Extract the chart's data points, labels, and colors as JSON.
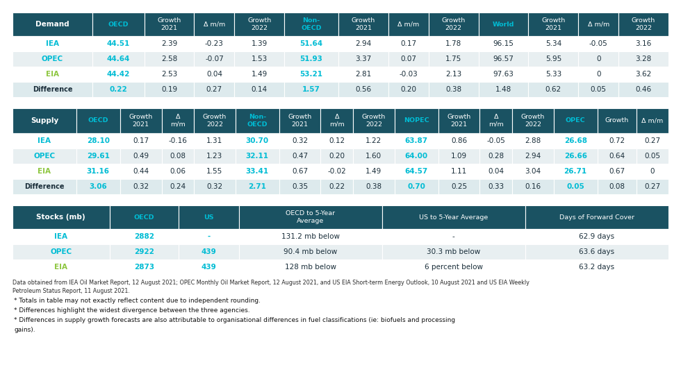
{
  "dark_teal": "#1a5262",
  "cyan_text": "#00bcd4",
  "green_text": "#8dc63f",
  "white": "#ffffff",
  "light_gray_row": "#e8eff1",
  "diff_row_bg": "#ddeaed",
  "dark_text": "#1a2e3a",
  "demand_headers": [
    "Demand",
    "OECD",
    "Growth\n2021",
    "Δ m/m",
    "Growth\n2022",
    "Non-\nOECD",
    "Growth\n2021",
    "Δ m/m",
    "Growth\n2022",
    "World",
    "Growth\n2021",
    "Δ m/m",
    "Growth\n2022"
  ],
  "demand_cyan_header_cols": [
    1,
    5,
    9
  ],
  "demand_rows": [
    [
      "IEA",
      "44.51",
      "2.39",
      "-0.23",
      "1.39",
      "51.64",
      "2.94",
      "0.17",
      "1.78",
      "96.15",
      "5.34",
      "-0.05",
      "3.16"
    ],
    [
      "OPEC",
      "44.64",
      "2.58",
      "-0.07",
      "1.53",
      "51.93",
      "3.37",
      "0.07",
      "1.75",
      "96.57",
      "5.95",
      "0",
      "3.28"
    ],
    [
      "EIA",
      "44.42",
      "2.53",
      "0.04",
      "1.49",
      "53.21",
      "2.81",
      "-0.03",
      "2.13",
      "97.63",
      "5.33",
      "0",
      "3.62"
    ],
    [
      "Difference",
      "0.22",
      "0.19",
      "0.27",
      "0.14",
      "1.57",
      "0.56",
      "0.20",
      "0.38",
      "1.48",
      "0.62",
      "0.05",
      "0.46"
    ]
  ],
  "demand_cyan_data_cols": [
    1,
    5
  ],
  "supply_headers": [
    "Supply",
    "OECD",
    "Growth\n2021",
    "Δ\nm/m",
    "Growth\n2022",
    "Non-\nOECD",
    "Growth\n2021",
    "Δ\nm/m",
    "Growth\n2022",
    "NOPEC",
    "Growth\n2021",
    "Δ\nm/m",
    "Growth\n2022",
    "OPEC",
    "Growth",
    "Δ m/m"
  ],
  "supply_cyan_header_cols": [
    1,
    5,
    9,
    13
  ],
  "supply_rows": [
    [
      "IEA",
      "28.10",
      "0.17",
      "-0.16",
      "1.31",
      "30.70",
      "0.32",
      "0.12",
      "1.22",
      "63.87",
      "0.86",
      "-0.05",
      "2.88",
      "26.68",
      "0.72",
      "0.27"
    ],
    [
      "OPEC",
      "29.61",
      "0.49",
      "0.08",
      "1.23",
      "32.11",
      "0.47",
      "0.20",
      "1.60",
      "64.00",
      "1.09",
      "0.28",
      "2.94",
      "26.66",
      "0.64",
      "0.05"
    ],
    [
      "EIA",
      "31.16",
      "0.44",
      "0.06",
      "1.55",
      "33.41",
      "0.67",
      "-0.02",
      "1.49",
      "64.57",
      "1.11",
      "0.04",
      "3.04",
      "26.71",
      "0.67",
      "0"
    ],
    [
      "Difference",
      "3.06",
      "0.32",
      "0.24",
      "0.32",
      "2.71",
      "0.35",
      "0.22",
      "0.38",
      "0.70",
      "0.25",
      "0.33",
      "0.16",
      "0.05",
      "0.08",
      "0.27"
    ]
  ],
  "supply_cyan_data_cols": [
    1,
    5,
    9,
    13
  ],
  "stocks_headers": [
    "Stocks (mb)",
    "OECD",
    "US",
    "OECD to 5-Year\nAverage",
    "US to 5-Year Average",
    "Days of Forward Cover"
  ],
  "stocks_cyan_header_cols": [
    1,
    2
  ],
  "stocks_rows": [
    [
      "IEA",
      "2882",
      "-",
      "131.2 mb below",
      "-",
      "62.9 days"
    ],
    [
      "OPEC",
      "2922",
      "439",
      "90.4 mb below",
      "30.3 mb below",
      "63.6 days"
    ],
    [
      "EIA",
      "2873",
      "439",
      "128 mb below",
      "6 percent below",
      "63.2 days"
    ]
  ],
  "stocks_cyan_data_cols": [
    1,
    2
  ],
  "footnote1": "Data obtained from IEA Oil Market Report, 12 August 2021; OPEC Monthly Oil Market Report, 12 August 2021, and US EIA Short-term Energy Outlook, 10 August 2021 and US EIA Weekly\nPetroleum Status Report, 11 August 2021.",
  "footnote2": "* Totals in table may not exactly reflect content due to independent rounding.\n* Differences highlight the widest divergence between the three agencies.\n* Differences in supply growth forecasts are also attributable to organisational differences in fuel classifications (ie: biofuels and processing\ngains)."
}
